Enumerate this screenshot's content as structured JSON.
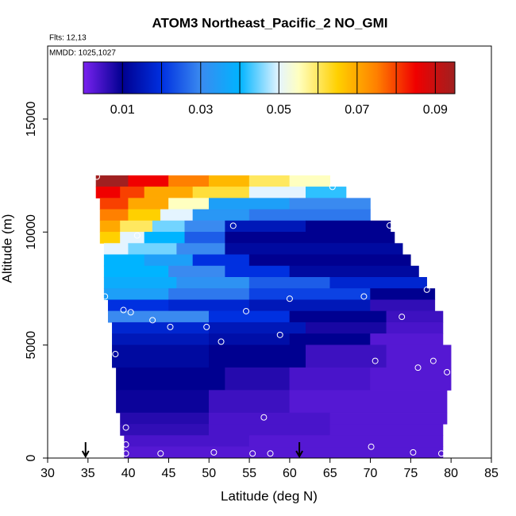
{
  "chart_data": {
    "type": "heatmap",
    "title": "ATOM3 Northeast_Pacific_2 NO_GMI",
    "annotations": [
      "Flts: 12,13",
      "MMDD: 1025,1027"
    ],
    "x_label": "Latitude (deg N)",
    "y_label": "Altitude (m)",
    "xlim": [
      30,
      85
    ],
    "xticks": [
      30,
      35,
      40,
      45,
      50,
      55,
      60,
      65,
      70,
      75,
      80,
      85
    ],
    "ylim": [
      0,
      18230
    ],
    "yticks": [
      0,
      5000,
      10000,
      15000
    ],
    "colorbar": {
      "lim": [
        0,
        0.095
      ],
      "ticks": [
        0.01,
        0.03,
        0.05,
        0.07,
        0.09
      ],
      "breaks": [
        0.01,
        0.02,
        0.03,
        0.04,
        0.05,
        0.06,
        0.07,
        0.08,
        0.09
      ],
      "stops": [
        {
          "value": 0,
          "color": "#7a22f0"
        },
        {
          "value": 0.01,
          "color": "#000090"
        },
        {
          "value": 0.02,
          "color": "#0030e0"
        },
        {
          "value": 0.03,
          "color": "#3a8af0"
        },
        {
          "value": 0.04,
          "color": "#00b4ff"
        },
        {
          "value": 0.05,
          "color": "#e4f4ff"
        },
        {
          "value": 0.055,
          "color": "#ffffc0"
        },
        {
          "value": 0.065,
          "color": "#ffd000"
        },
        {
          "value": 0.075,
          "color": "#ff8000"
        },
        {
          "value": 0.085,
          "color": "#f00000"
        },
        {
          "value": 0.095,
          "color": "#a02020"
        }
      ]
    },
    "rows": [
      {
        "alt": [
          12000,
          12500
        ],
        "cells": [
          [
            36,
            40,
            0.095
          ],
          [
            40,
            45,
            0.085
          ],
          [
            45,
            50,
            0.075
          ],
          [
            50,
            55,
            0.068
          ],
          [
            55,
            60,
            0.06
          ],
          [
            60,
            65,
            0.055
          ]
        ]
      },
      {
        "alt": [
          11500,
          12000
        ],
        "cells": [
          [
            36,
            39,
            0.085
          ],
          [
            39,
            42,
            0.08
          ],
          [
            42,
            48,
            0.07
          ],
          [
            48,
            55,
            0.062
          ],
          [
            55,
            62,
            0.05
          ],
          [
            62,
            67,
            0.042
          ]
        ]
      },
      {
        "alt": [
          11000,
          11500
        ],
        "cells": [
          [
            36.5,
            40,
            0.08
          ],
          [
            40,
            45,
            0.07
          ],
          [
            45,
            50,
            0.055
          ],
          [
            50,
            60,
            0.035
          ],
          [
            60,
            70,
            0.03
          ]
        ]
      },
      {
        "alt": [
          10500,
          11000
        ],
        "cells": [
          [
            36.5,
            40,
            0.075
          ],
          [
            40,
            44,
            0.065
          ],
          [
            44,
            48,
            0.05
          ],
          [
            48,
            55,
            0.033
          ],
          [
            55,
            70,
            0.028
          ]
        ]
      },
      {
        "alt": [
          10000,
          10500
        ],
        "cells": [
          [
            36.5,
            39,
            0.07
          ],
          [
            39,
            43,
            0.06
          ],
          [
            43,
            47,
            0.045
          ],
          [
            47,
            52,
            0.03
          ],
          [
            52,
            62,
            0.015
          ],
          [
            62,
            72.5,
            0.01
          ]
        ]
      },
      {
        "alt": [
          9500,
          10000
        ],
        "cells": [
          [
            36.5,
            39,
            0.065
          ],
          [
            39,
            42,
            0.05
          ],
          [
            42,
            47,
            0.04
          ],
          [
            47,
            52,
            0.025
          ],
          [
            52,
            73,
            0.01
          ]
        ]
      },
      {
        "alt": [
          9000,
          9500
        ],
        "cells": [
          [
            37,
            40,
            0.05
          ],
          [
            40,
            46,
            0.045
          ],
          [
            46,
            52,
            0.03
          ],
          [
            52,
            74,
            0.012
          ]
        ]
      },
      {
        "alt": [
          8500,
          9000
        ],
        "cells": [
          [
            37,
            42,
            0.04
          ],
          [
            42,
            48,
            0.035
          ],
          [
            48,
            55,
            0.02
          ],
          [
            55,
            75,
            0.01
          ]
        ]
      },
      {
        "alt": [
          8000,
          8500
        ],
        "cells": [
          [
            37,
            45,
            0.04
          ],
          [
            45,
            52,
            0.03
          ],
          [
            52,
            60,
            0.02
          ],
          [
            60,
            76,
            0.012
          ]
        ]
      },
      {
        "alt": [
          7500,
          8000
        ],
        "cells": [
          [
            37,
            46,
            0.038
          ],
          [
            46,
            55,
            0.032
          ],
          [
            55,
            65,
            0.025
          ],
          [
            65,
            77,
            0.018
          ]
        ]
      },
      {
        "alt": [
          7000,
          7500
        ],
        "cells": [
          [
            37,
            45,
            0.035
          ],
          [
            45,
            55,
            0.028
          ],
          [
            55,
            70,
            0.022
          ],
          [
            70,
            78,
            0.01
          ]
        ]
      },
      {
        "alt": [
          6500,
          7000
        ],
        "cells": [
          [
            37.5,
            45,
            0.02
          ],
          [
            45,
            55,
            0.018
          ],
          [
            55,
            70,
            0.015
          ],
          [
            70,
            78,
            0.006
          ]
        ]
      },
      {
        "alt": [
          6000,
          6500
        ],
        "cells": [
          [
            37.5,
            50,
            0.03
          ],
          [
            50,
            60,
            0.02
          ],
          [
            60,
            72,
            0.01
          ],
          [
            72,
            79,
            0.005
          ]
        ]
      },
      {
        "alt": [
          5500,
          6000
        ],
        "cells": [
          [
            38,
            50,
            0.018
          ],
          [
            50,
            62,
            0.015
          ],
          [
            62,
            72,
            0.008
          ],
          [
            72,
            79,
            0.004
          ]
        ]
      },
      {
        "alt": [
          5000,
          5500
        ],
        "cells": [
          [
            38,
            50,
            0.015
          ],
          [
            50,
            60,
            0.013
          ],
          [
            60,
            70,
            0.01
          ],
          [
            70,
            79,
            0.003
          ]
        ]
      },
      {
        "alt": [
          4000,
          5000
        ],
        "cells": [
          [
            38,
            50,
            0.012
          ],
          [
            50,
            62,
            0.01
          ],
          [
            62,
            72,
            0.005
          ],
          [
            72,
            80,
            0.003
          ]
        ]
      },
      {
        "alt": [
          3000,
          4000
        ],
        "cells": [
          [
            38.5,
            52,
            0.01
          ],
          [
            52,
            60,
            0.007
          ],
          [
            60,
            70,
            0.004
          ],
          [
            70,
            80,
            0.003
          ]
        ]
      },
      {
        "alt": [
          2000,
          3000
        ],
        "cells": [
          [
            38.5,
            50,
            0.009
          ],
          [
            50,
            60,
            0.005
          ],
          [
            60,
            79.5,
            0.003
          ]
        ]
      },
      {
        "alt": [
          1500,
          2000
        ],
        "cells": [
          [
            39,
            50,
            0.007
          ],
          [
            50,
            65,
            0.004
          ],
          [
            65,
            79.5,
            0.003
          ]
        ]
      },
      {
        "alt": [
          1000,
          1500
        ],
        "cells": [
          [
            39,
            50,
            0.006
          ],
          [
            50,
            65,
            0.004
          ],
          [
            65,
            79,
            0.003
          ]
        ]
      },
      {
        "alt": [
          500,
          1000
        ],
        "cells": [
          [
            39.5,
            55,
            0.004
          ],
          [
            55,
            79,
            0.003
          ]
        ]
      },
      {
        "alt": [
          0,
          500
        ],
        "cells": [
          [
            39.5,
            79,
            0.003
          ]
        ]
      }
    ],
    "samples": {
      "x": [
        36.1,
        65.3,
        41.1,
        53,
        72.4,
        37.1,
        60,
        69.2,
        77,
        39.4,
        40.3,
        43,
        45.2,
        49.7,
        54.6,
        73.9,
        51.5,
        58.8,
        38.4,
        70.6,
        75.9,
        77.8,
        79.5,
        56.8,
        39.7,
        39.7,
        70.1,
        39.7,
        44,
        50.6,
        55.4,
        57.6,
        75.3,
        78.8
      ],
      "y": [
        12450,
        12000,
        9850,
        10280,
        10290,
        7150,
        7050,
        7150,
        7450,
        6550,
        6450,
        6100,
        5800,
        5800,
        6500,
        6250,
        5150,
        5450,
        4600,
        4300,
        4000,
        4300,
        3800,
        1800,
        1350,
        600,
        500,
        200,
        200,
        250,
        200,
        200,
        250,
        200
      ]
    },
    "arrows": [
      34.7,
      61.2
    ]
  }
}
